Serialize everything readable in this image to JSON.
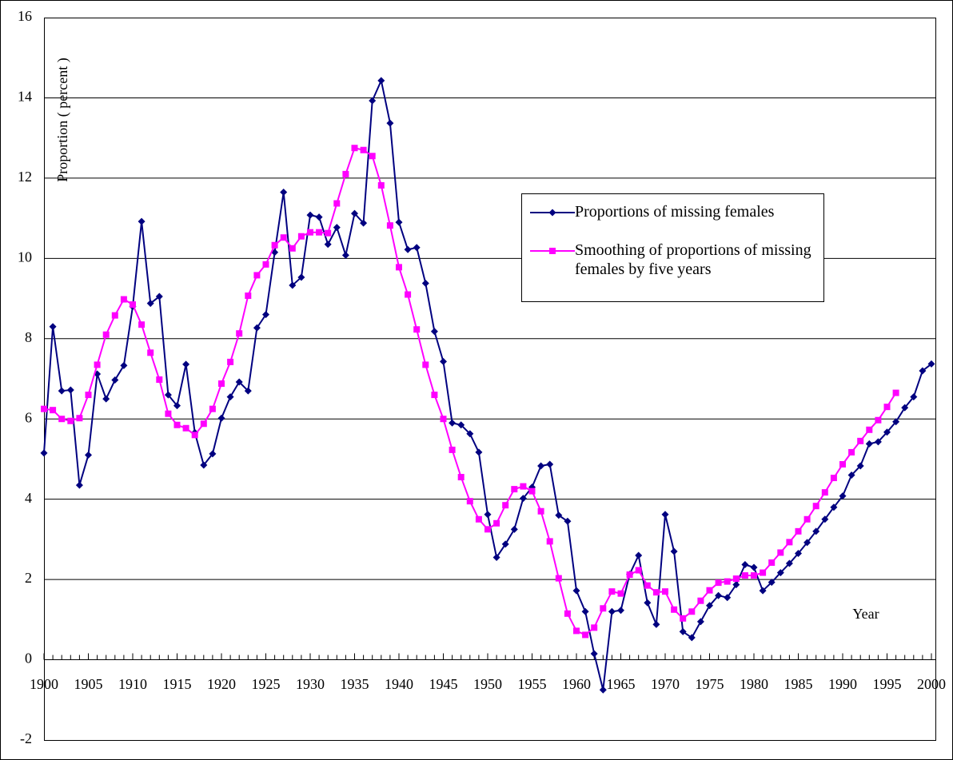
{
  "chart_data": {
    "type": "line",
    "y_label": "Proportion ( percent )",
    "x_label": "Year",
    "x": [
      1900,
      1901,
      1902,
      1903,
      1904,
      1905,
      1906,
      1907,
      1908,
      1909,
      1910,
      1911,
      1912,
      1913,
      1914,
      1915,
      1916,
      1917,
      1918,
      1919,
      1920,
      1921,
      1922,
      1923,
      1924,
      1925,
      1926,
      1927,
      1928,
      1929,
      1930,
      1931,
      1932,
      1933,
      1934,
      1935,
      1936,
      1937,
      1938,
      1939,
      1940,
      1941,
      1942,
      1943,
      1944,
      1945,
      1946,
      1947,
      1948,
      1949,
      1950,
      1951,
      1952,
      1953,
      1954,
      1955,
      1956,
      1957,
      1958,
      1959,
      1960,
      1961,
      1962,
      1963,
      1964,
      1965,
      1966,
      1967,
      1968,
      1969,
      1970,
      1971,
      1972,
      1973,
      1974,
      1975,
      1976,
      1977,
      1978,
      1979,
      1980,
      1981,
      1982,
      1983,
      1984,
      1985,
      1986,
      1987,
      1988,
      1989,
      1990,
      1991,
      1992,
      1993,
      1994,
      1995,
      1996,
      1997,
      1998,
      1999,
      2000
    ],
    "series": [
      {
        "name": "Proportions of missing females",
        "color": "#000080",
        "marker": "diamond",
        "values": [
          5.15,
          8.3,
          6.7,
          6.72,
          4.35,
          5.1,
          7.12,
          6.5,
          6.97,
          7.33,
          8.8,
          10.92,
          8.88,
          9.05,
          6.6,
          6.33,
          7.36,
          5.66,
          4.85,
          5.13,
          6.02,
          6.55,
          6.92,
          6.7,
          8.27,
          8.6,
          10.15,
          11.65,
          9.33,
          9.53,
          11.08,
          11.03,
          10.35,
          10.77,
          10.08,
          11.12,
          10.88,
          13.93,
          14.43,
          13.37,
          10.9,
          10.22,
          10.27,
          9.38,
          8.18,
          7.43,
          5.9,
          5.85,
          5.63,
          5.17,
          3.62,
          2.55,
          2.88,
          3.25,
          4.02,
          4.3,
          4.83,
          4.87,
          3.6,
          3.45,
          1.72,
          1.2,
          0.15,
          -0.75,
          1.2,
          1.23,
          2.13,
          2.6,
          1.42,
          0.88,
          3.62,
          2.7,
          0.7,
          0.55,
          0.95,
          1.35,
          1.6,
          1.55,
          1.87,
          2.37,
          2.3,
          1.72,
          1.93,
          2.17,
          2.4,
          2.65,
          2.92,
          3.2,
          3.5,
          3.8,
          4.08,
          4.6,
          4.83,
          5.38,
          5.43,
          5.67,
          5.93,
          6.28,
          6.55,
          7.2,
          7.37
        ]
      },
      {
        "name": "Smoothing of proportions of missing females by five years",
        "color": "#ff00ff",
        "marker": "square",
        "values": [
          6.25,
          6.22,
          6.0,
          5.95,
          6.02,
          6.6,
          7.35,
          8.1,
          8.58,
          8.98,
          8.85,
          8.35,
          7.65,
          6.98,
          6.13,
          5.85,
          5.77,
          5.6,
          5.88,
          6.25,
          6.88,
          7.42,
          8.13,
          9.07,
          9.58,
          9.85,
          10.33,
          10.52,
          10.25,
          10.55,
          10.65,
          10.65,
          10.63,
          11.37,
          12.1,
          12.75,
          12.7,
          12.55,
          11.82,
          10.82,
          9.78,
          9.1,
          8.23,
          7.35,
          6.6,
          6.0,
          5.23,
          4.55,
          3.95,
          3.5,
          3.25,
          3.4,
          3.85,
          4.25,
          4.32,
          4.2,
          3.7,
          2.95,
          2.03,
          1.15,
          0.72,
          0.62,
          0.8,
          1.28,
          1.7,
          1.65,
          2.12,
          2.23,
          1.85,
          1.68,
          1.7,
          1.25,
          1.03,
          1.2,
          1.47,
          1.73,
          1.92,
          1.95,
          2.02,
          2.1,
          2.1,
          2.17,
          2.42,
          2.67,
          2.93,
          3.2,
          3.5,
          3.83,
          4.17,
          4.53,
          4.87,
          5.17,
          5.45,
          5.73,
          5.97,
          6.3,
          6.65,
          null,
          null,
          null,
          null
        ]
      }
    ],
    "xlim": [
      1900,
      2000
    ],
    "xticks": [
      1900,
      1905,
      1910,
      1915,
      1920,
      1925,
      1930,
      1935,
      1940,
      1945,
      1950,
      1955,
      1960,
      1965,
      1970,
      1975,
      1980,
      1985,
      1990,
      1995,
      2000
    ],
    "ylim": [
      -2,
      16
    ],
    "yticks": [
      -2,
      0,
      2,
      4,
      6,
      8,
      10,
      12,
      14,
      16
    ],
    "grid": true
  }
}
